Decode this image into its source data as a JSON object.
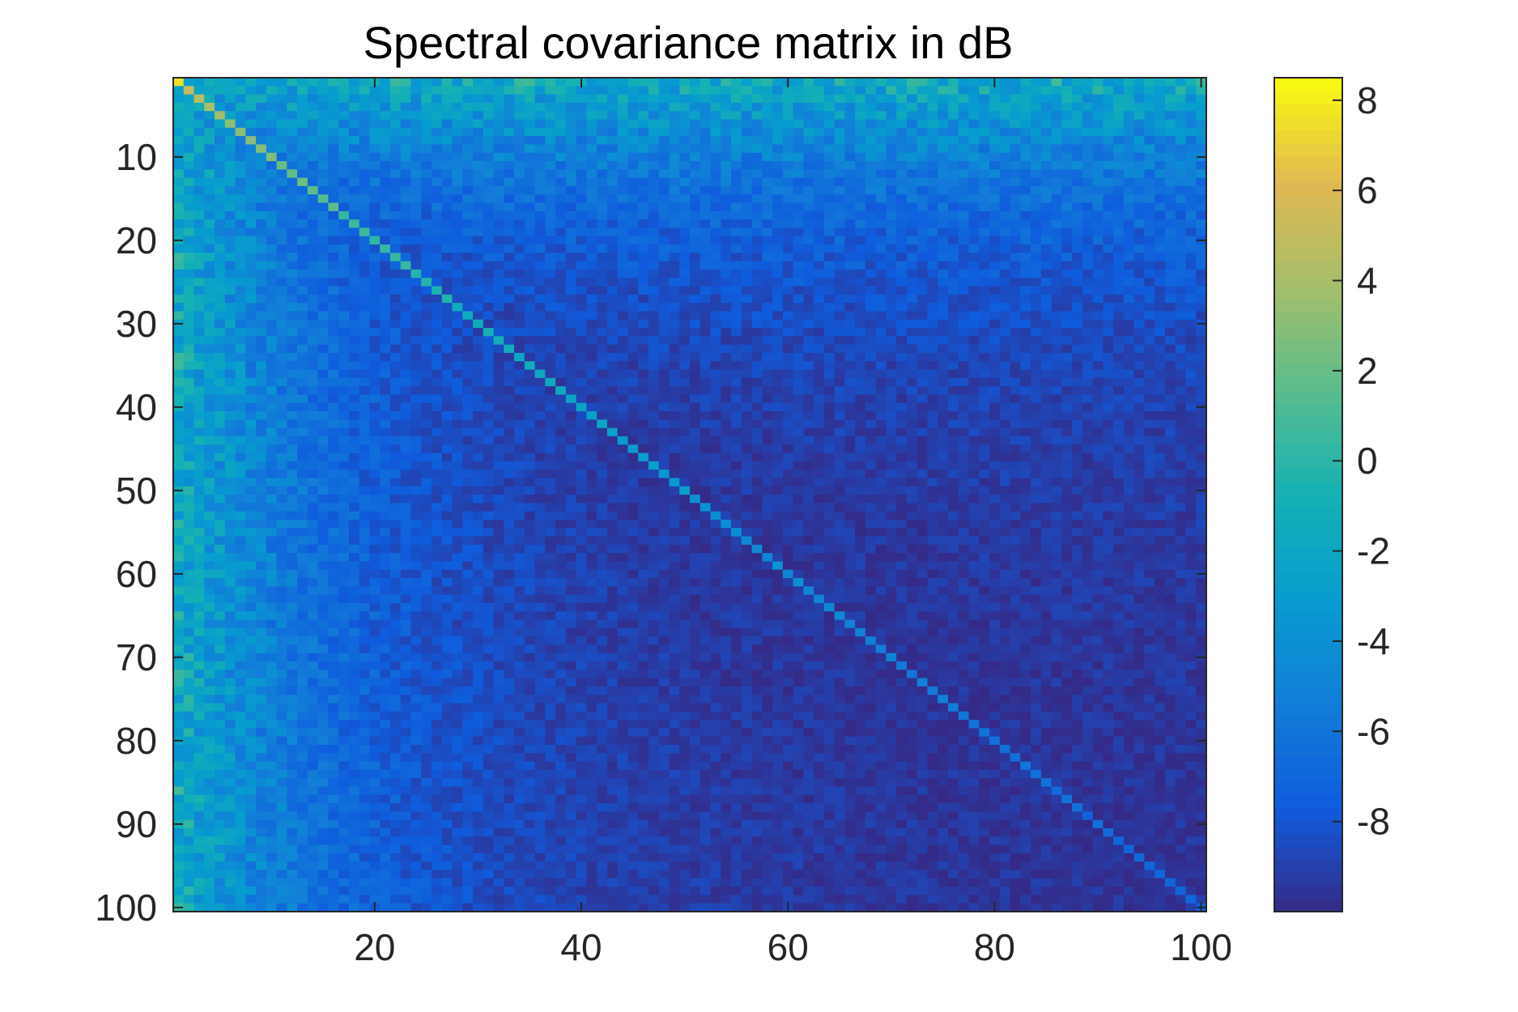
{
  "chart_data": {
    "type": "heatmap",
    "title": "Spectral covariance matrix in dB",
    "rows": 100,
    "cols": 100,
    "x_ticks": [
      20,
      40,
      60,
      80,
      100
    ],
    "y_ticks": [
      10,
      20,
      30,
      40,
      50,
      60,
      70,
      80,
      90,
      100
    ],
    "xlim": [
      0.5,
      100.5
    ],
    "ylim": [
      0.5,
      100.5
    ],
    "y_direction": "reversed",
    "colorbar": {
      "location": "right",
      "clim": [
        -10,
        8.5
      ],
      "ticks": [
        8,
        6,
        4,
        2,
        0,
        -2,
        -4,
        -6,
        -8
      ],
      "colormap": "parula"
    },
    "value_model": {
      "background_floor_db": -9.9,
      "off_diagonal_low_index_db": -6.5,
      "diagonal_start_db": 7.5,
      "diagonal_end_db": -7.5,
      "description_of_structure": "symmetric; strong diagonal decaying with index; elevated off-diagonal energy for low indices"
    },
    "grid": false
  }
}
